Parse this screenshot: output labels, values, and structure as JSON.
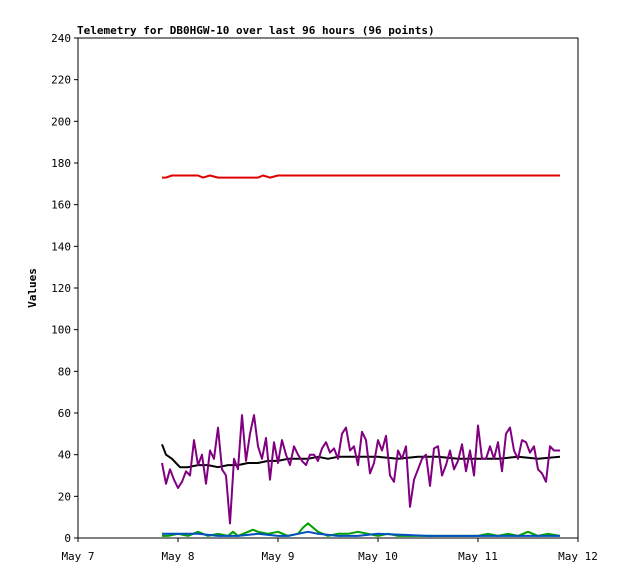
{
  "chart_data": {
    "type": "line",
    "title": "Telemetry for DB0HGW-10 over last 96 hours (96 points)",
    "xlabel": "",
    "ylabel": "Values",
    "x_ticks": [
      "May 7",
      "May 8",
      "May 9",
      "May 10",
      "May 11",
      "May 12"
    ],
    "xlim": [
      0,
      5
    ],
    "y_ticks": [
      0,
      20,
      40,
      60,
      80,
      100,
      120,
      140,
      160,
      180,
      200,
      220,
      240
    ],
    "ylim": [
      0,
      240
    ],
    "grid": false,
    "legend": "none",
    "series": [
      {
        "color": "#e00000",
        "x": [
          0.84,
          0.88,
          0.94,
          1.0,
          1.2,
          1.25,
          1.32,
          1.4,
          1.5,
          1.6,
          1.8,
          1.85,
          1.92,
          2.0,
          2.3,
          2.6,
          3.0,
          3.5,
          4.0,
          4.5,
          4.82
        ],
        "values": [
          173,
          173,
          174,
          174,
          174,
          173,
          174,
          173,
          173,
          173,
          173,
          174,
          173,
          174,
          174,
          174,
          174,
          174,
          174,
          174,
          174
        ]
      },
      {
        "color": "#000000",
        "x": [
          0.84,
          0.88,
          0.94,
          0.98,
          1.02,
          1.1,
          1.2,
          1.3,
          1.4,
          1.5,
          1.6,
          1.7,
          1.8,
          1.9,
          2.0,
          2.1,
          2.2,
          2.3,
          2.4,
          2.5,
          2.6,
          2.8,
          3.0,
          3.2,
          3.4,
          3.6,
          3.8,
          4.0,
          4.2,
          4.4,
          4.6,
          4.82
        ],
        "values": [
          45,
          40,
          38,
          36,
          34,
          34,
          35,
          35,
          34,
          35,
          35,
          36,
          36,
          37,
          37,
          38,
          38,
          38,
          39,
          38,
          39,
          39,
          39,
          38,
          39,
          39,
          38,
          38,
          38,
          39,
          38,
          39
        ]
      },
      {
        "color": "#800080",
        "x": [
          0.84,
          0.88,
          0.92,
          0.96,
          1.0,
          1.04,
          1.08,
          1.12,
          1.16,
          1.2,
          1.24,
          1.28,
          1.32,
          1.36,
          1.4,
          1.44,
          1.48,
          1.52,
          1.56,
          1.6,
          1.64,
          1.68,
          1.72,
          1.76,
          1.8,
          1.84,
          1.88,
          1.92,
          1.96,
          2.0,
          2.04,
          2.08,
          2.12,
          2.16,
          2.2,
          2.24,
          2.28,
          2.32,
          2.36,
          2.4,
          2.44,
          2.48,
          2.52,
          2.56,
          2.6,
          2.64,
          2.68,
          2.72,
          2.76,
          2.8,
          2.84,
          2.88,
          2.92,
          2.96,
          3.0,
          3.04,
          3.08,
          3.12,
          3.16,
          3.2,
          3.24,
          3.28,
          3.32,
          3.36,
          3.4,
          3.44,
          3.48,
          3.52,
          3.56,
          3.6,
          3.64,
          3.68,
          3.72,
          3.76,
          3.8,
          3.84,
          3.88,
          3.92,
          3.96,
          4.0,
          4.04,
          4.08,
          4.12,
          4.16,
          4.2,
          4.24,
          4.28,
          4.32,
          4.36,
          4.4,
          4.44,
          4.48,
          4.52,
          4.56,
          4.6,
          4.64,
          4.68,
          4.72,
          4.76,
          4.8,
          4.82
        ],
        "values": [
          36,
          26,
          33,
          28,
          24,
          27,
          32,
          30,
          47,
          35,
          40,
          26,
          42,
          38,
          53,
          33,
          30,
          7,
          38,
          33,
          59,
          37,
          50,
          59,
          44,
          38,
          48,
          28,
          46,
          36,
          47,
          40,
          35,
          44,
          40,
          37,
          35,
          40,
          40,
          37,
          43,
          46,
          41,
          43,
          38,
          50,
          53,
          42,
          44,
          35,
          51,
          47,
          31,
          36,
          47,
          42,
          49,
          30,
          27,
          42,
          38,
          44,
          15,
          28,
          33,
          38,
          40,
          25,
          43,
          44,
          30,
          35,
          42,
          33,
          37,
          45,
          32,
          42,
          30,
          54,
          38,
          38,
          44,
          38,
          46,
          32,
          50,
          53,
          42,
          38,
          47,
          46,
          41,
          44,
          33,
          31,
          27,
          44,
          42,
          42,
          42
        ]
      },
      {
        "color": "#00a000",
        "x": [
          0.84,
          0.9,
          1.0,
          1.1,
          1.15,
          1.2,
          1.3,
          1.4,
          1.5,
          1.55,
          1.6,
          1.7,
          1.75,
          1.8,
          1.9,
          2.0,
          2.1,
          2.2,
          2.25,
          2.3,
          2.4,
          2.5,
          2.6,
          2.7,
          2.8,
          3.0,
          3.1,
          3.2,
          3.4,
          3.6,
          3.8,
          4.0,
          4.1,
          4.2,
          4.3,
          4.4,
          4.5,
          4.6,
          4.7,
          4.82
        ],
        "values": [
          1,
          1,
          2,
          1,
          2,
          3,
          1,
          2,
          1,
          3,
          1,
          3,
          4,
          3,
          2,
          3,
          1,
          2,
          5,
          7,
          3,
          1,
          2,
          2,
          3,
          1,
          2,
          1,
          1,
          1,
          1,
          1,
          2,
          1,
          2,
          1,
          3,
          1,
          2,
          1
        ]
      },
      {
        "color": "#0050c0",
        "x": [
          0.84,
          1.0,
          1.2,
          1.4,
          1.6,
          1.8,
          2.0,
          2.1,
          2.2,
          2.3,
          2.4,
          2.6,
          2.8,
          3.0,
          3.5,
          4.0,
          4.5,
          4.82
        ],
        "values": [
          2,
          2,
          2,
          1,
          1,
          2,
          1,
          1,
          2,
          3,
          2,
          1,
          1,
          2,
          1,
          1,
          1,
          1
        ]
      }
    ]
  }
}
